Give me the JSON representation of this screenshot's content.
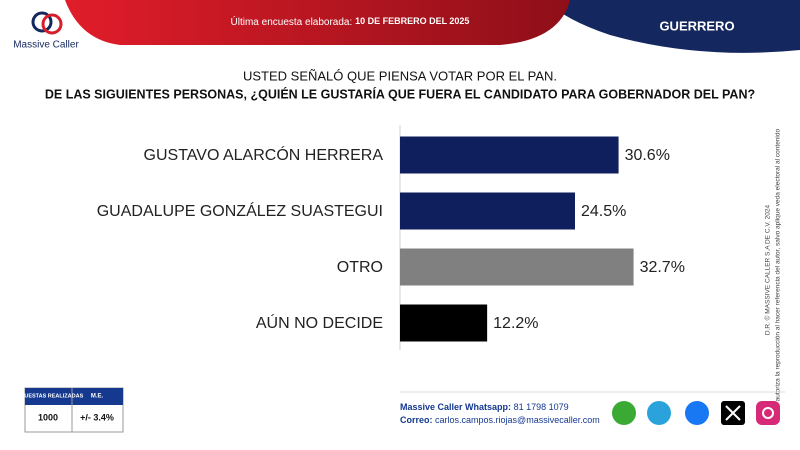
{
  "brand": "Massive Caller",
  "header": {
    "label": "Última encuesta elaborada:",
    "date": "10 DE FEBRERO DEL 2025",
    "region": "GUERRERO"
  },
  "chart_data": {
    "type": "barh",
    "subtitle": "USTED SEÑALÓ QUE PIENSA VOTAR POR EL PAN.",
    "title": "DE LAS SIGUIENTES PERSONAS,  ¿QUIÉN LE GUSTARÍA QUE FUERA EL CANDIDATO PARA GOBERNADOR DEL PAN?",
    "categories": [
      "GUSTAVO ALARCÓN HERRERA",
      "GUADALUPE GONZÁLEZ SUASTEGUI",
      "OTRO",
      "AÚN NO DECIDE"
    ],
    "values": [
      30.6,
      24.5,
      32.7,
      12.2
    ],
    "value_labels": [
      "30.6%",
      "24.5%",
      "32.7%",
      "12.2%"
    ],
    "colors": [
      "#0f1f5e",
      "#0f1f5e",
      "#808080",
      "#000000"
    ],
    "xlim": [
      0,
      35
    ]
  },
  "copyright": [
    "D.R. © MASSIVE CALLER S.A DE C.V. 2024",
    "Se autoriza la reproducción al hacer referencia del autor, salvo aplique veda electoral al contenido"
  ],
  "survey_table": {
    "headers": [
      "ENCUESTAS REALIZADAS",
      "M.E."
    ],
    "row": [
      1000,
      "+/- 3.4%"
    ]
  },
  "footer": {
    "whatsapp_label": "Massive Caller Whatsapp:",
    "whatsapp": "81 1798 1079",
    "email_label": "Correo:",
    "email": "carlos.campos.riojas@massivecaller.com"
  }
}
